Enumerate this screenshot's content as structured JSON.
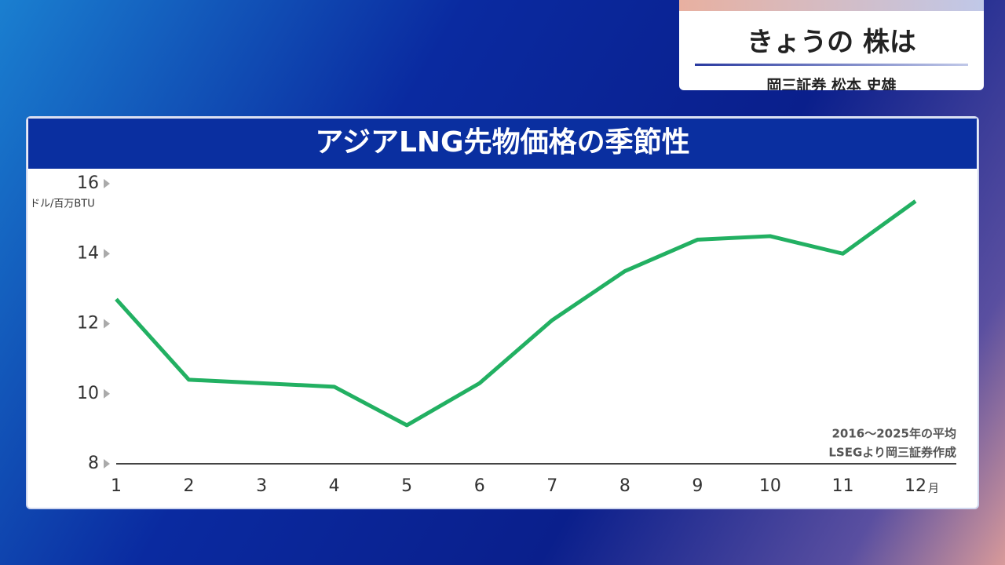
{
  "header": {
    "title": "きょうの 株は",
    "presenter": "岡三証券 松本 史雄"
  },
  "chart_data": {
    "type": "line",
    "title": "アジアLNG先物価格の季節性",
    "y_label": "ドル/百万BTU",
    "x_unit": "月",
    "categories": [
      "1",
      "2",
      "3",
      "4",
      "5",
      "6",
      "7",
      "8",
      "9",
      "10",
      "11",
      "12"
    ],
    "values": [
      12.7,
      10.4,
      10.3,
      10.2,
      9.1,
      10.3,
      12.1,
      13.5,
      14.4,
      14.5,
      14.0,
      15.5
    ],
    "color": "#22b062",
    "ylim": [
      8,
      16
    ],
    "yticks": [
      8,
      10,
      12,
      14,
      16
    ],
    "notes": [
      "2016～2025年の平均",
      "LSEGより岡三証券作成"
    ]
  }
}
